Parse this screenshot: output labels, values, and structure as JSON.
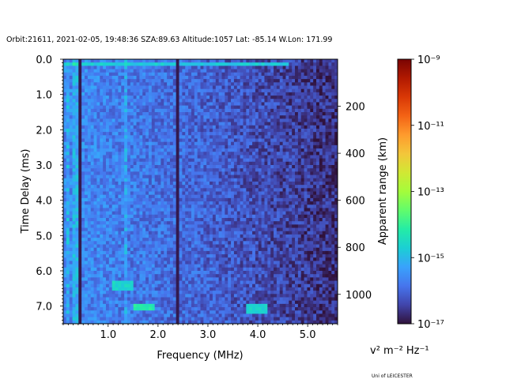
{
  "chart_data": {
    "type": "heatmap",
    "title": "Orbit:21611, 2021-02-05, 19:48:36 SZA:89.63 Altitude:1057 Lat: -85.14 W.Lon: 171.99",
    "xlabel": "Frequency (MHz)",
    "ylabel": "Time Delay (ms)",
    "ylabel_right": "Apparent range (km)",
    "xlim": [
      0.1,
      5.6
    ],
    "ylim": [
      7.5,
      0.0
    ],
    "right_ylim": [
      1125,
      0
    ],
    "x_ticks": [
      {
        "value": 1.0,
        "label": "1.0"
      },
      {
        "value": 2.0,
        "label": "2.0"
      },
      {
        "value": 3.0,
        "label": "3.0"
      },
      {
        "value": 4.0,
        "label": "4.0"
      },
      {
        "value": 5.0,
        "label": "5.0"
      }
    ],
    "y_ticks": [
      {
        "value": 0.0,
        "label": "0.0"
      },
      {
        "value": 1.0,
        "label": "1.0"
      },
      {
        "value": 2.0,
        "label": "2.0"
      },
      {
        "value": 3.0,
        "label": "3.0"
      },
      {
        "value": 4.0,
        "label": "4.0"
      },
      {
        "value": 5.0,
        "label": "5.0"
      },
      {
        "value": 6.0,
        "label": "6.0"
      },
      {
        "value": 7.0,
        "label": "7.0"
      }
    ],
    "right_ticks": [
      {
        "value": 200,
        "label": "200"
      },
      {
        "value": 400,
        "label": "400"
      },
      {
        "value": 600,
        "label": "600"
      },
      {
        "value": 800,
        "label": "800"
      },
      {
        "value": 1000,
        "label": "1000"
      }
    ],
    "colorbar": {
      "scale": "log",
      "range": [
        1e-17,
        1e-09
      ],
      "label": "Apparent range (km)",
      "units_label": "v² m⁻² Hz⁻¹",
      "ticks": [
        {
          "exp": -9,
          "label": "10⁻⁹"
        },
        {
          "exp": -11,
          "label": "10⁻¹¹"
        },
        {
          "exp": -13,
          "label": "10⁻¹³"
        },
        {
          "exp": -15,
          "label": "10⁻¹⁵"
        },
        {
          "exp": -17,
          "label": "10⁻¹⁷"
        }
      ],
      "colormap": [
        "#30123b",
        "#4145ab",
        "#4675ed",
        "#39a2fc",
        "#1bcfd4",
        "#24eca6",
        "#61fc6c",
        "#a4fc3b",
        "#d1e834",
        "#f3c63a",
        "#fe9b2d",
        "#f36315",
        "#d93806",
        "#b11901",
        "#7a0403"
      ]
    },
    "grid": false,
    "features": {
      "background_log_level_low_freq": -15.6,
      "background_log_level_high_freq": -16.7,
      "bright_row_delay_ms": 0.15,
      "vertical_stripes_mhz": [
        0.2,
        0.35,
        1.35
      ],
      "dark_stripes_mhz": [
        0.45,
        2.38
      ],
      "bright_patches": [
        {
          "freq_mhz": 1.7,
          "delay_ms": 7.05,
          "log_level": -14.2
        },
        {
          "freq_mhz": 4.0,
          "delay_ms": 7.1,
          "log_level": -14.6
        },
        {
          "freq_mhz": 1.3,
          "delay_ms": 6.4,
          "log_level": -14.6
        }
      ]
    }
  },
  "footer": {
    "credit": "Uni of LEICESTER"
  }
}
